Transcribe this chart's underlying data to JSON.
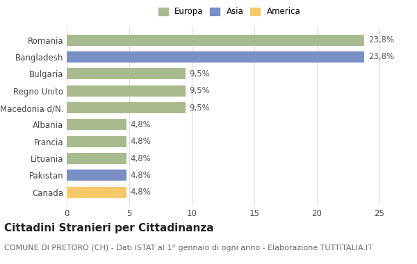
{
  "categories": [
    "Romania",
    "Bangladesh",
    "Bulgaria",
    "Regno Unito",
    "Macedonia d/N.",
    "Albania",
    "Francia",
    "Lituania",
    "Pakistan",
    "Canada"
  ],
  "values": [
    23.8,
    23.8,
    9.5,
    9.5,
    9.5,
    4.8,
    4.8,
    4.8,
    4.8,
    4.8
  ],
  "labels": [
    "23,8%",
    "23,8%",
    "9,5%",
    "9,5%",
    "9,5%",
    "4,8%",
    "4,8%",
    "4,8%",
    "4,8%",
    "4,8%"
  ],
  "colors": [
    "#a8bb8f",
    "#7b8fc7",
    "#a8bb8f",
    "#a8bb8f",
    "#a8bb8f",
    "#a8bb8f",
    "#a8bb8f",
    "#a8bb8f",
    "#7b8fc7",
    "#f5c96a"
  ],
  "legend": [
    {
      "label": "Europa",
      "color": "#a8bb8f"
    },
    {
      "label": "Asia",
      "color": "#7b8fc7"
    },
    {
      "label": "America",
      "color": "#f5c96a"
    }
  ],
  "xlim": [
    0,
    26
  ],
  "xticks": [
    0,
    5,
    10,
    15,
    20,
    25
  ],
  "title": "Cittadini Stranieri per Cittadinanza",
  "subtitle": "COMUNE DI PRETORO (CH) - Dati ISTAT al 1° gennaio di ogni anno - Elaborazione TUTTITALIA.IT",
  "background_color": "#ffffff",
  "bar_height": 0.65,
  "grid_color": "#dddddd",
  "label_fontsize": 8.5,
  "tick_fontsize": 8.5,
  "title_fontsize": 11,
  "subtitle_fontsize": 8
}
